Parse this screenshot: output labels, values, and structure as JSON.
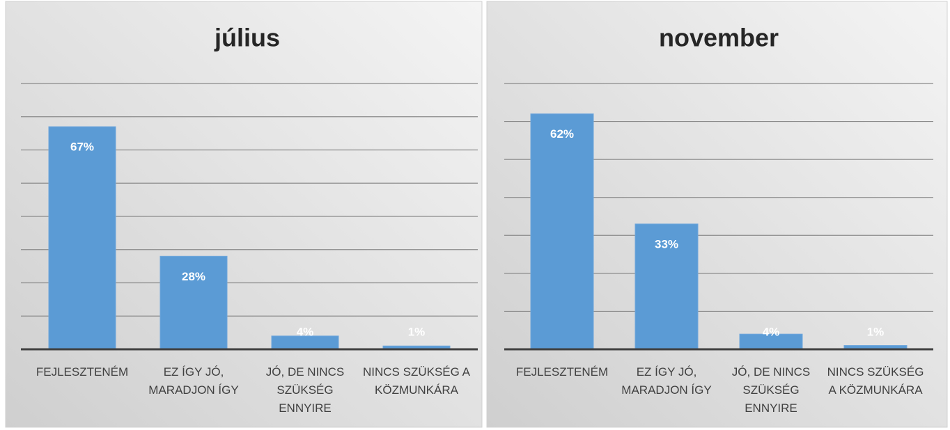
{
  "chart_data": [
    {
      "type": "bar",
      "title": "július",
      "categories": [
        "FEJLESZTENÉM",
        "EZ ÍGY JÓ, MARADJON ÍGY",
        "JÓ, DE NINCS SZÜKSÉG ENNYIRE",
        "NINCS SZÜKSÉG A KÖZMUNKÁRA"
      ],
      "values": [
        67,
        28,
        4,
        1
      ],
      "value_labels": [
        "67%",
        "28%",
        "4%",
        "1%"
      ],
      "color": "#5b9bd5",
      "ylim": [
        0,
        80
      ],
      "yticks": [
        0,
        10,
        20,
        30,
        40,
        50,
        60,
        70,
        80
      ],
      "grid": true
    },
    {
      "type": "bar",
      "title": "november",
      "categories": [
        "FEJLESZTENÉM",
        "EZ ÍGY JÓ, MARADJON ÍGY",
        "JÓ, DE NINCS SZÜKSÉG ENNYIRE",
        "NINCS SZÜKSÉG A KÖZMUNKÁRA"
      ],
      "values": [
        62,
        33,
        4,
        1
      ],
      "value_labels": [
        "62%",
        "33%",
        "4%",
        "1%"
      ],
      "color": "#5b9bd5",
      "ylim": [
        0,
        70
      ],
      "yticks": [
        0,
        10,
        20,
        30,
        40,
        50,
        60,
        70
      ],
      "grid": true
    }
  ]
}
